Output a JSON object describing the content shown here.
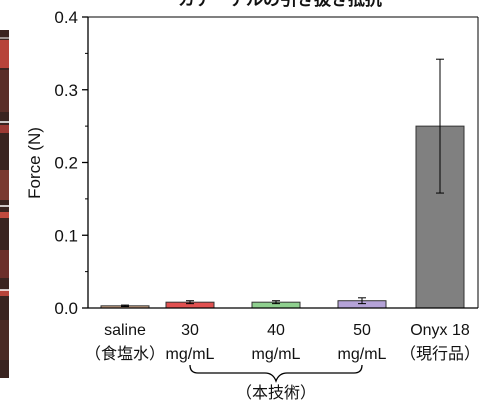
{
  "chart_data": {
    "type": "bar",
    "title": "カテーテルの引き抜き抵抗",
    "ylabel": "Force (N)",
    "xlabel": "",
    "ylim": [
      0,
      0.4
    ],
    "y_ticks": [
      "0.0",
      "0.1",
      "0.2",
      "0.3",
      "0.4"
    ],
    "categories": [
      {
        "line1": "saline",
        "line2": "（食塩水）"
      },
      {
        "line1": "30",
        "line2": "mg/mL"
      },
      {
        "line1": "40",
        "line2": "mg/mL"
      },
      {
        "line1": "50",
        "line2": "mg/mL"
      },
      {
        "line1": "Onyx 18",
        "line2": "（現行品）"
      }
    ],
    "values": [
      0.003,
      0.008,
      0.008,
      0.01,
      0.25
    ],
    "errors": [
      0.001,
      0.002,
      0.002,
      0.004,
      0.092
    ],
    "colors": [
      "#d4a98a",
      "#e05050",
      "#8ecf8e",
      "#b5a3d8",
      "#808080"
    ],
    "group_label": "（本技術）",
    "grid": false,
    "legend": "none"
  }
}
